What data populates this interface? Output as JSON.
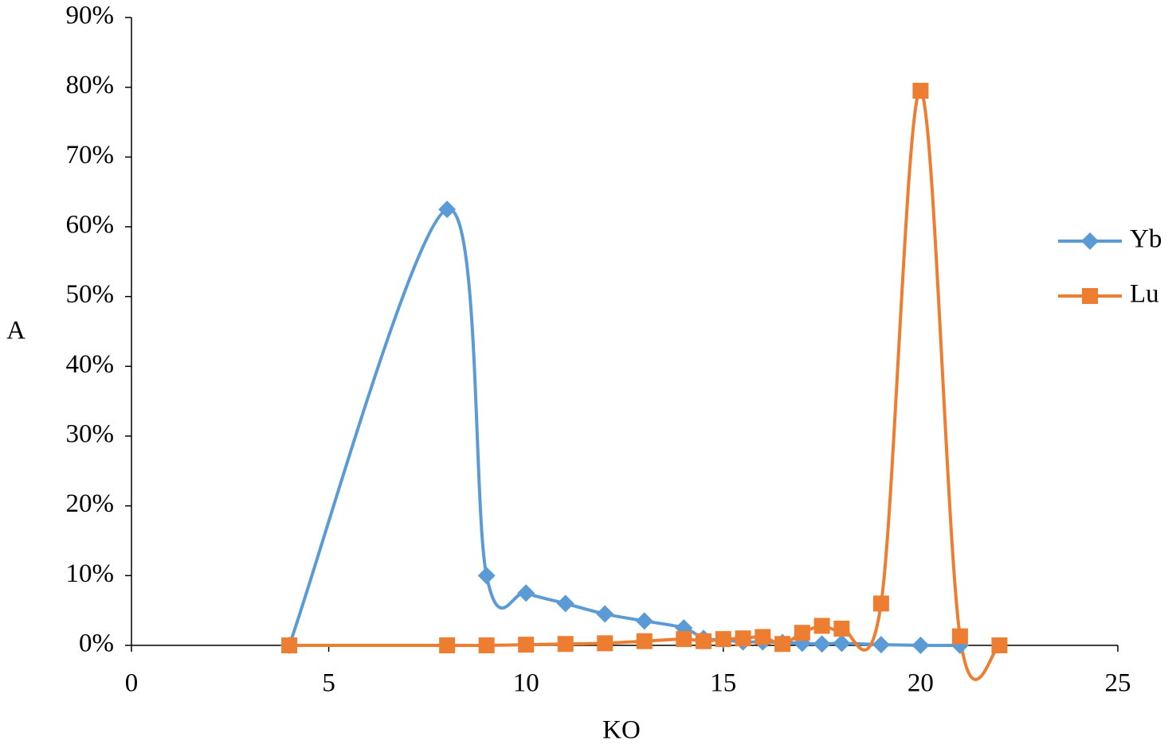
{
  "chart_data": {
    "type": "line",
    "x_label": "KO",
    "y_label": "A",
    "series": [
      {
        "name": "Yb",
        "color": "#5b9bd5",
        "marker": "diamond",
        "x": [
          4,
          8,
          9,
          10,
          11,
          12,
          13,
          14,
          14.5,
          15,
          15.5,
          16,
          16.5,
          17,
          17.5,
          18,
          19,
          20,
          21
        ],
        "values": [
          0,
          62.5,
          10,
          7.5,
          6,
          4.5,
          3.5,
          2.5,
          1,
          0.8,
          0.5,
          0.5,
          0.4,
          0.3,
          0.2,
          0.3,
          0.1,
          0,
          0
        ]
      },
      {
        "name": "Lu",
        "color": "#ed7d31",
        "marker": "square",
        "x": [
          4,
          8,
          9,
          10,
          11,
          12,
          13,
          14,
          14.5,
          15,
          15.5,
          16,
          16.5,
          17,
          17.5,
          18,
          19,
          20,
          21,
          22
        ],
        "values": [
          0,
          0,
          0,
          0.1,
          0.2,
          0.3,
          0.6,
          0.9,
          0.6,
          0.9,
          1,
          1.2,
          0.2,
          1.8,
          2.8,
          2.4,
          6,
          79.5,
          1.3,
          0
        ]
      }
    ],
    "xlim": [
      0,
      25
    ],
    "xticks": [
      0,
      5,
      10,
      15,
      20,
      25
    ],
    "ylim": [
      0,
      90
    ],
    "yticks": [
      {
        "value": 0,
        "label": "0%"
      },
      {
        "value": 10,
        "label": "10%"
      },
      {
        "value": 20,
        "label": "20%"
      },
      {
        "value": 30,
        "label": "30%"
      },
      {
        "value": 40,
        "label": "40%"
      },
      {
        "value": 50,
        "label": "50%"
      },
      {
        "value": 60,
        "label": "60%"
      },
      {
        "value": 70,
        "label": "70%"
      },
      {
        "value": 80,
        "label": "80%"
      },
      {
        "value": 90,
        "label": "90%"
      }
    ],
    "smooth": true,
    "legend": "right",
    "grid": false
  }
}
